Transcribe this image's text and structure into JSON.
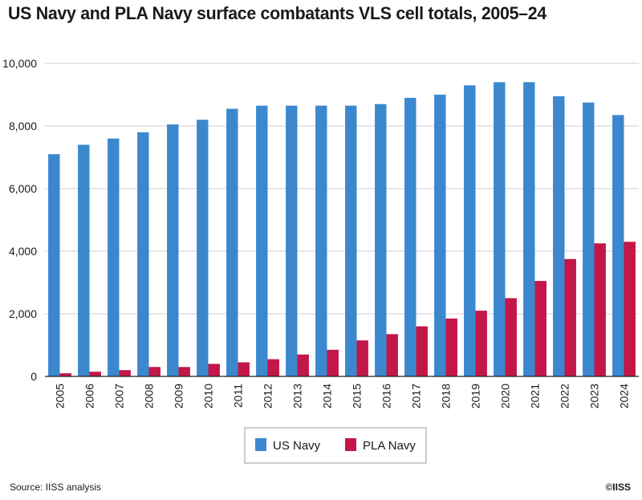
{
  "title": "US Navy and PLA Navy surface combatants VLS cell totals, 2005–24",
  "source": "Source: IISS analysis",
  "copyright": "©IISS",
  "colors": {
    "us_navy": "#3b88cf",
    "pla_navy": "#c21748",
    "grid": "#cfcfcf",
    "axis": "#222222"
  },
  "chart_data": {
    "type": "bar",
    "categories": [
      "2005",
      "2006",
      "2007",
      "2008",
      "2009",
      "2010",
      "2011",
      "2012",
      "2013",
      "2014",
      "2015",
      "2016",
      "2017",
      "2018",
      "2019",
      "2020",
      "2021",
      "2022",
      "2023",
      "2024"
    ],
    "series": [
      {
        "name": "US Navy",
        "values": [
          7100,
          7400,
          7600,
          7800,
          8050,
          8200,
          8550,
          8650,
          8650,
          8650,
          8650,
          8700,
          8900,
          9000,
          9300,
          9400,
          9400,
          8950,
          8750,
          8350
        ]
      },
      {
        "name": "PLA Navy",
        "values": [
          100,
          150,
          200,
          300,
          300,
          400,
          450,
          550,
          700,
          850,
          1150,
          1350,
          1600,
          1850,
          2100,
          2500,
          3050,
          3750,
          4250,
          4300
        ]
      }
    ],
    "ylim": [
      0,
      10000
    ],
    "yticks": [
      "0",
      "2,000",
      "4,000",
      "6,000",
      "8,000",
      "10,000"
    ],
    "ytick_values": [
      0,
      2000,
      4000,
      6000,
      8000,
      10000
    ],
    "grid": true,
    "legend_position": "bottom-center"
  }
}
